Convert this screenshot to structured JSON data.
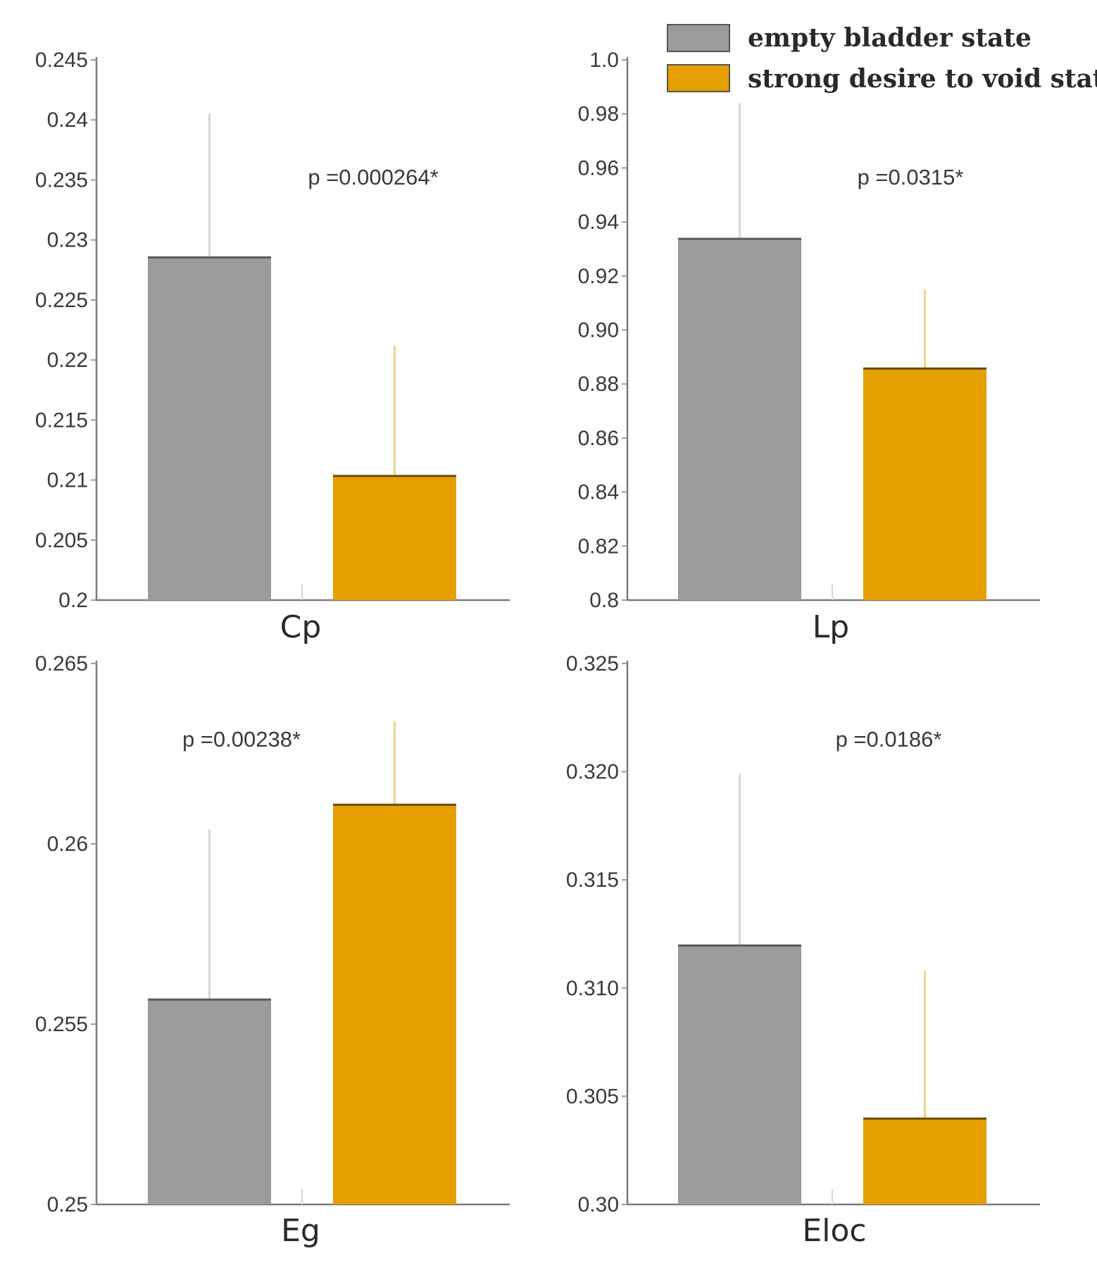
{
  "legend": {
    "entries": [
      {
        "label": "empty bladder state",
        "color": "#9b9b9b"
      },
      {
        "label": "strong desire to void state",
        "color": "#e59f00"
      }
    ]
  },
  "chart_data": [
    {
      "type": "bar",
      "xlabel": "Cp",
      "annotation": "p =0.000264*",
      "ylim": [
        0.2,
        0.245
      ],
      "yticks": [
        "0.2",
        "0.205",
        "0.21",
        "0.215",
        "0.22",
        "0.225",
        "0.23",
        "0.235",
        "0.24",
        "0.245"
      ],
      "series": [
        {
          "name": "empty bladder state",
          "value": 0.2286,
          "error": 0.0119
        },
        {
          "name": "strong desire to void state",
          "value": 0.2104,
          "error": 0.0108
        }
      ]
    },
    {
      "type": "bar",
      "xlabel": "Lp",
      "annotation": "p =0.0315*",
      "ylim": [
        0.8,
        1.0
      ],
      "yticks": [
        "0.8",
        "0.82",
        "0.84",
        "0.86",
        "0.88",
        "0.90",
        "0.92",
        "0.94",
        "0.96",
        "0.98",
        "1.0"
      ],
      "series": [
        {
          "name": "empty bladder state",
          "value": 0.934,
          "error": 0.05
        },
        {
          "name": "strong desire to void state",
          "value": 0.886,
          "error": 0.029
        }
      ]
    },
    {
      "type": "bar",
      "xlabel": "Eg",
      "annotation": "p =0.00238*",
      "ylim": [
        0.25,
        0.265
      ],
      "yticks": [
        "0.25",
        "0.255",
        "0.26",
        "0.265"
      ],
      "series": [
        {
          "name": "empty bladder state",
          "value": 0.2557,
          "error": 0.0047
        },
        {
          "name": "strong desire to void state",
          "value": 0.2611,
          "error": 0.0023
        }
      ]
    },
    {
      "type": "bar",
      "xlabel": "Eloc",
      "annotation": "p =0.0186*",
      "ylim": [
        0.3,
        0.325
      ],
      "yticks": [
        "0.30",
        "0.305",
        "0.310",
        "0.315",
        "0.320",
        "0.325"
      ],
      "series": [
        {
          "name": "empty bladder state",
          "value": 0.312,
          "error": 0.0079
        },
        {
          "name": "strong desire to void state",
          "value": 0.304,
          "error": 0.0068
        }
      ]
    }
  ]
}
